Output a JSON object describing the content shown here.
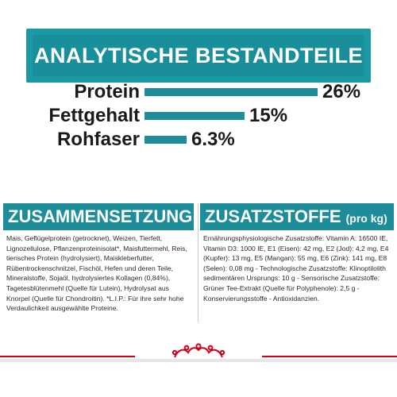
{
  "header": {
    "title": "ANALYTISCHE BESTANDTEILE"
  },
  "nutrients": [
    {
      "label": "Protein",
      "value_text": "26%",
      "value": 26
    },
    {
      "label": "Fettgehalt",
      "value_text": "15%",
      "value": 15
    },
    {
      "label": "Rohfaser",
      "value_text": "6.3%",
      "value": 6.3
    }
  ],
  "composition": {
    "title": "ZUSAMMENSETZUNG",
    "text": "Mais, Geflügelprotein (getrocknet), Weizen, Tierfett, Lignozellulose, Pflanzenproteinisolat*, Maisfuttermehl, Reis, tierisches Protein (hydrolysiert), Maiskleberfutter, Rübentrockenschnitzel, Fischöl, Hefen und deren Teile, Mineralstoffe, Sojaöl, hydrolysiertes Kollagen (0,84%), Tagetesblütenmehl (Quelle für Lutein), Hydrolysat aus Knorpel (Quelle für Chondroitin). *L.I.P.: Für ihre sehr hohe Verdaulichkeit ausgewählte Proteine."
  },
  "additives": {
    "title": "ZUSATZSTOFFE",
    "title_suffix": "(pro kg)",
    "text": "Ernährungsphysiologische Zusatzstoffe: Vitamin A: 16500 IE, Vitamin D3: 1000 IE, E1 (Eisen): 42 mg, E2 (Jod): 4,2 mg, E4 (Kupfer): 13 mg, E5 (Mangan): 55 mg, E6 (Zink): 141 mg, E8 (Selen): 0,08 mg - Technologische Zusatzstoffe: Klinoptilolith sedimentären Ursprungs: 10 g - Sensorische Zusatzstoffe: Grüner Tee-Extrakt (Quelle für Polyphenole): 2,5 g - Konservierungsstoffe - Antioxidanzien."
  },
  "colors": {
    "accent": "#1c8d99",
    "brand_red": "#d0021b"
  },
  "icons": {
    "footer_logo": "crown-icon"
  }
}
